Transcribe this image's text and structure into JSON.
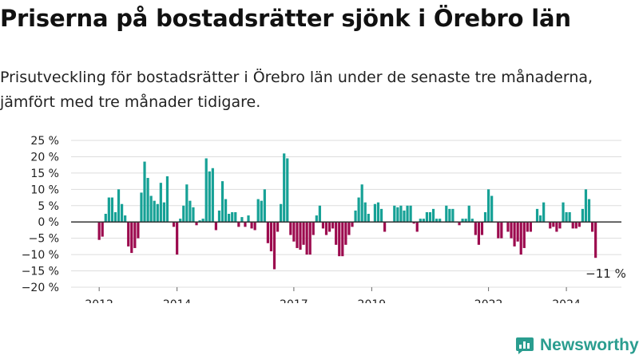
{
  "title": "Priserna på bostadsrätter sjönk i Örebro län",
  "subtitle": "Prisutveckling för bostadsrätter i Örebro län under de senaste tre månaderna, jämfört med tre månader tidigare.",
  "brand": {
    "name": "Newsworthy",
    "icon": "newsworthy-logo-icon"
  },
  "colors": {
    "positive": "#16a196",
    "negative": "#9c0a4e",
    "grid": "#dddddd",
    "zero_line": "#333333",
    "text": "#222222"
  },
  "chart_data": {
    "type": "bar",
    "title": "Priserna på bostadsrätter sjönk i Örebro län",
    "xlabel": "",
    "ylabel": "",
    "ylim": [
      -20,
      25
    ],
    "yticks": [
      25,
      20,
      15,
      10,
      5,
      0,
      -5,
      -10,
      -15,
      -20
    ],
    "ytick_labels": [
      "25 %",
      "20 %",
      "15 %",
      "10 %",
      "5 %",
      "0 %",
      "−5 %",
      "−10 %",
      "−15 %",
      "−20 %"
    ],
    "grid": true,
    "x_start": "2011-12",
    "x_frequency": "monthly",
    "xtick_labels": [
      {
        "label": "2012",
        "date": "2012-01"
      },
      {
        "label": "2014",
        "date": "2014-01"
      },
      {
        "label": "2017",
        "date": "2017-01"
      },
      {
        "label": "2019",
        "date": "2019-01"
      },
      {
        "label": "2022",
        "date": "2022-01"
      },
      {
        "label": "2024",
        "date": "2024-01"
      }
    ],
    "annotation": {
      "text": "−11 %",
      "date": "2025-01",
      "value": -11
    },
    "values": [
      0,
      -5.5,
      -4.5,
      2.5,
      7.5,
      7.5,
      3,
      10,
      5.5,
      2,
      -7.5,
      -9.5,
      -8,
      -5,
      9,
      18.5,
      13.5,
      8,
      6.5,
      5.5,
      12,
      6,
      14,
      0,
      -1.5,
      -10,
      1,
      5,
      11.5,
      6.5,
      4.5,
      -1,
      0.5,
      1,
      19.5,
      15.5,
      16.5,
      -2.5,
      3.5,
      12.5,
      7,
      2.5,
      3,
      3,
      -1.5,
      1.5,
      -1.5,
      2,
      -2,
      -2.5,
      7,
      6.5,
      10,
      -6.5,
      -9,
      -14.5,
      -3,
      5.5,
      21,
      19.5,
      -4,
      -6,
      -8,
      -8.5,
      -7,
      -10,
      -10,
      -4,
      2,
      5,
      -2,
      -4,
      -3,
      -2,
      -7,
      -10.5,
      -10.5,
      -7,
      -4,
      -1.5,
      3.5,
      7.5,
      11.5,
      6,
      2.5,
      0,
      5.5,
      6,
      4,
      -3,
      0,
      0,
      5,
      4.5,
      5,
      3.5,
      5,
      5,
      -0.5,
      -3,
      1,
      1,
      3,
      3,
      4,
      1,
      1,
      0,
      5,
      4,
      4,
      0,
      -1,
      1,
      1,
      5,
      1,
      -4,
      -7,
      -4,
      3,
      10,
      8,
      0,
      -5,
      -5,
      0,
      -3,
      -5,
      -7.5,
      -6,
      -10,
      -8,
      -3,
      -3,
      0,
      4,
      2,
      6,
      0,
      -2,
      -1.5,
      -3,
      -2,
      6,
      3,
      3,
      -2,
      -2,
      -1.5,
      4,
      10,
      7,
      -3,
      -11
    ]
  }
}
